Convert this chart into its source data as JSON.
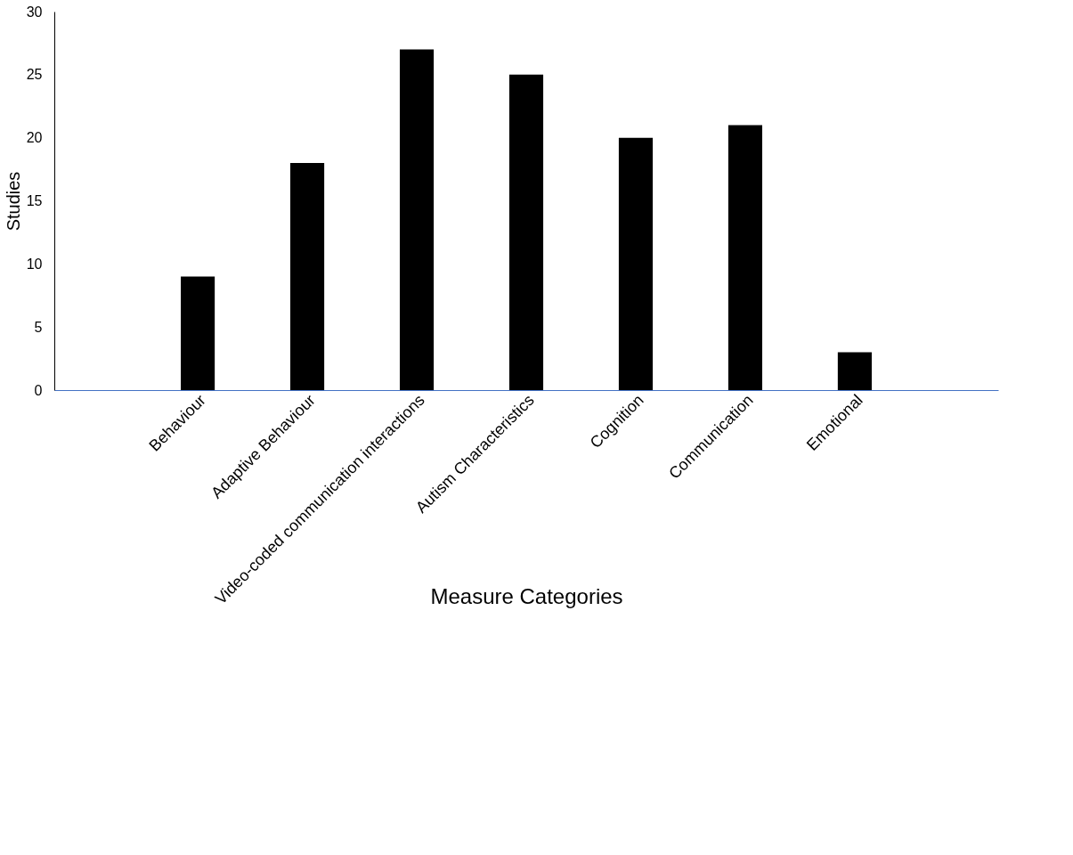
{
  "chart_data": {
    "type": "bar",
    "xlabel": "Measure Categories",
    "ylabel": "Studies",
    "categories": [
      null,
      "Behaviour",
      "Adaptive Behaviour",
      "Video-coded communication interactions",
      "Autism Characteristics",
      "Cognition",
      "Communication",
      "Emotional",
      null
    ],
    "values": [
      null,
      9,
      18,
      27,
      25,
      20,
      21,
      3,
      null
    ],
    "color": "#000000",
    "ylim": [
      0,
      30
    ],
    "yticks": [
      0,
      5,
      10,
      15,
      20,
      25,
      30
    ],
    "grid": false
  }
}
